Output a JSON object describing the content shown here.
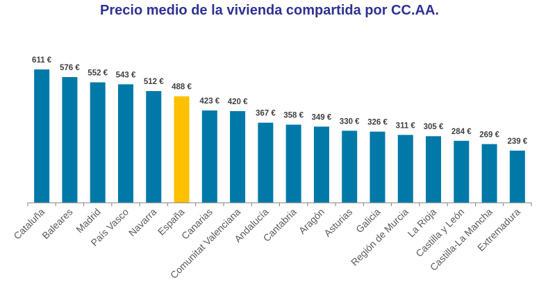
{
  "chart_data": {
    "type": "bar",
    "title": "Precio medio de la vivienda compartida por CC.AA.",
    "xlabel": "",
    "ylabel": "",
    "ylim": [
      0,
      700
    ],
    "grid": false,
    "legend": "none",
    "value_suffix": " €",
    "categories": [
      "Cataluña",
      "Baleares",
      "Madrid",
      "País Vasco",
      "Navarra",
      "España",
      "Canarias",
      "Comunitat Valenciana",
      "Andalucía",
      "Cantabria",
      "Aragón",
      "Asturias",
      "Galicia",
      "Región de Murcia",
      "La Rioja",
      "Castilla y León",
      "Castilla-La Mancha",
      "Extremadura"
    ],
    "values": [
      611,
      576,
      552,
      543,
      512,
      488,
      423,
      420,
      367,
      358,
      349,
      330,
      326,
      311,
      305,
      284,
      269,
      239
    ],
    "data_labels": [
      "611 €",
      "576 €",
      "552 €",
      "543 €",
      "512 €",
      "488 €",
      "423 €",
      "420 €",
      "367 €",
      "358 €",
      "349 €",
      "330 €",
      "326 €",
      "311 €",
      "305 €",
      "284 €",
      "269 €",
      "239 €"
    ],
    "colors": {
      "default": "#0079A8",
      "highlight": "#FFC000",
      "highlight_category": "España",
      "title": "#2E3192"
    }
  }
}
